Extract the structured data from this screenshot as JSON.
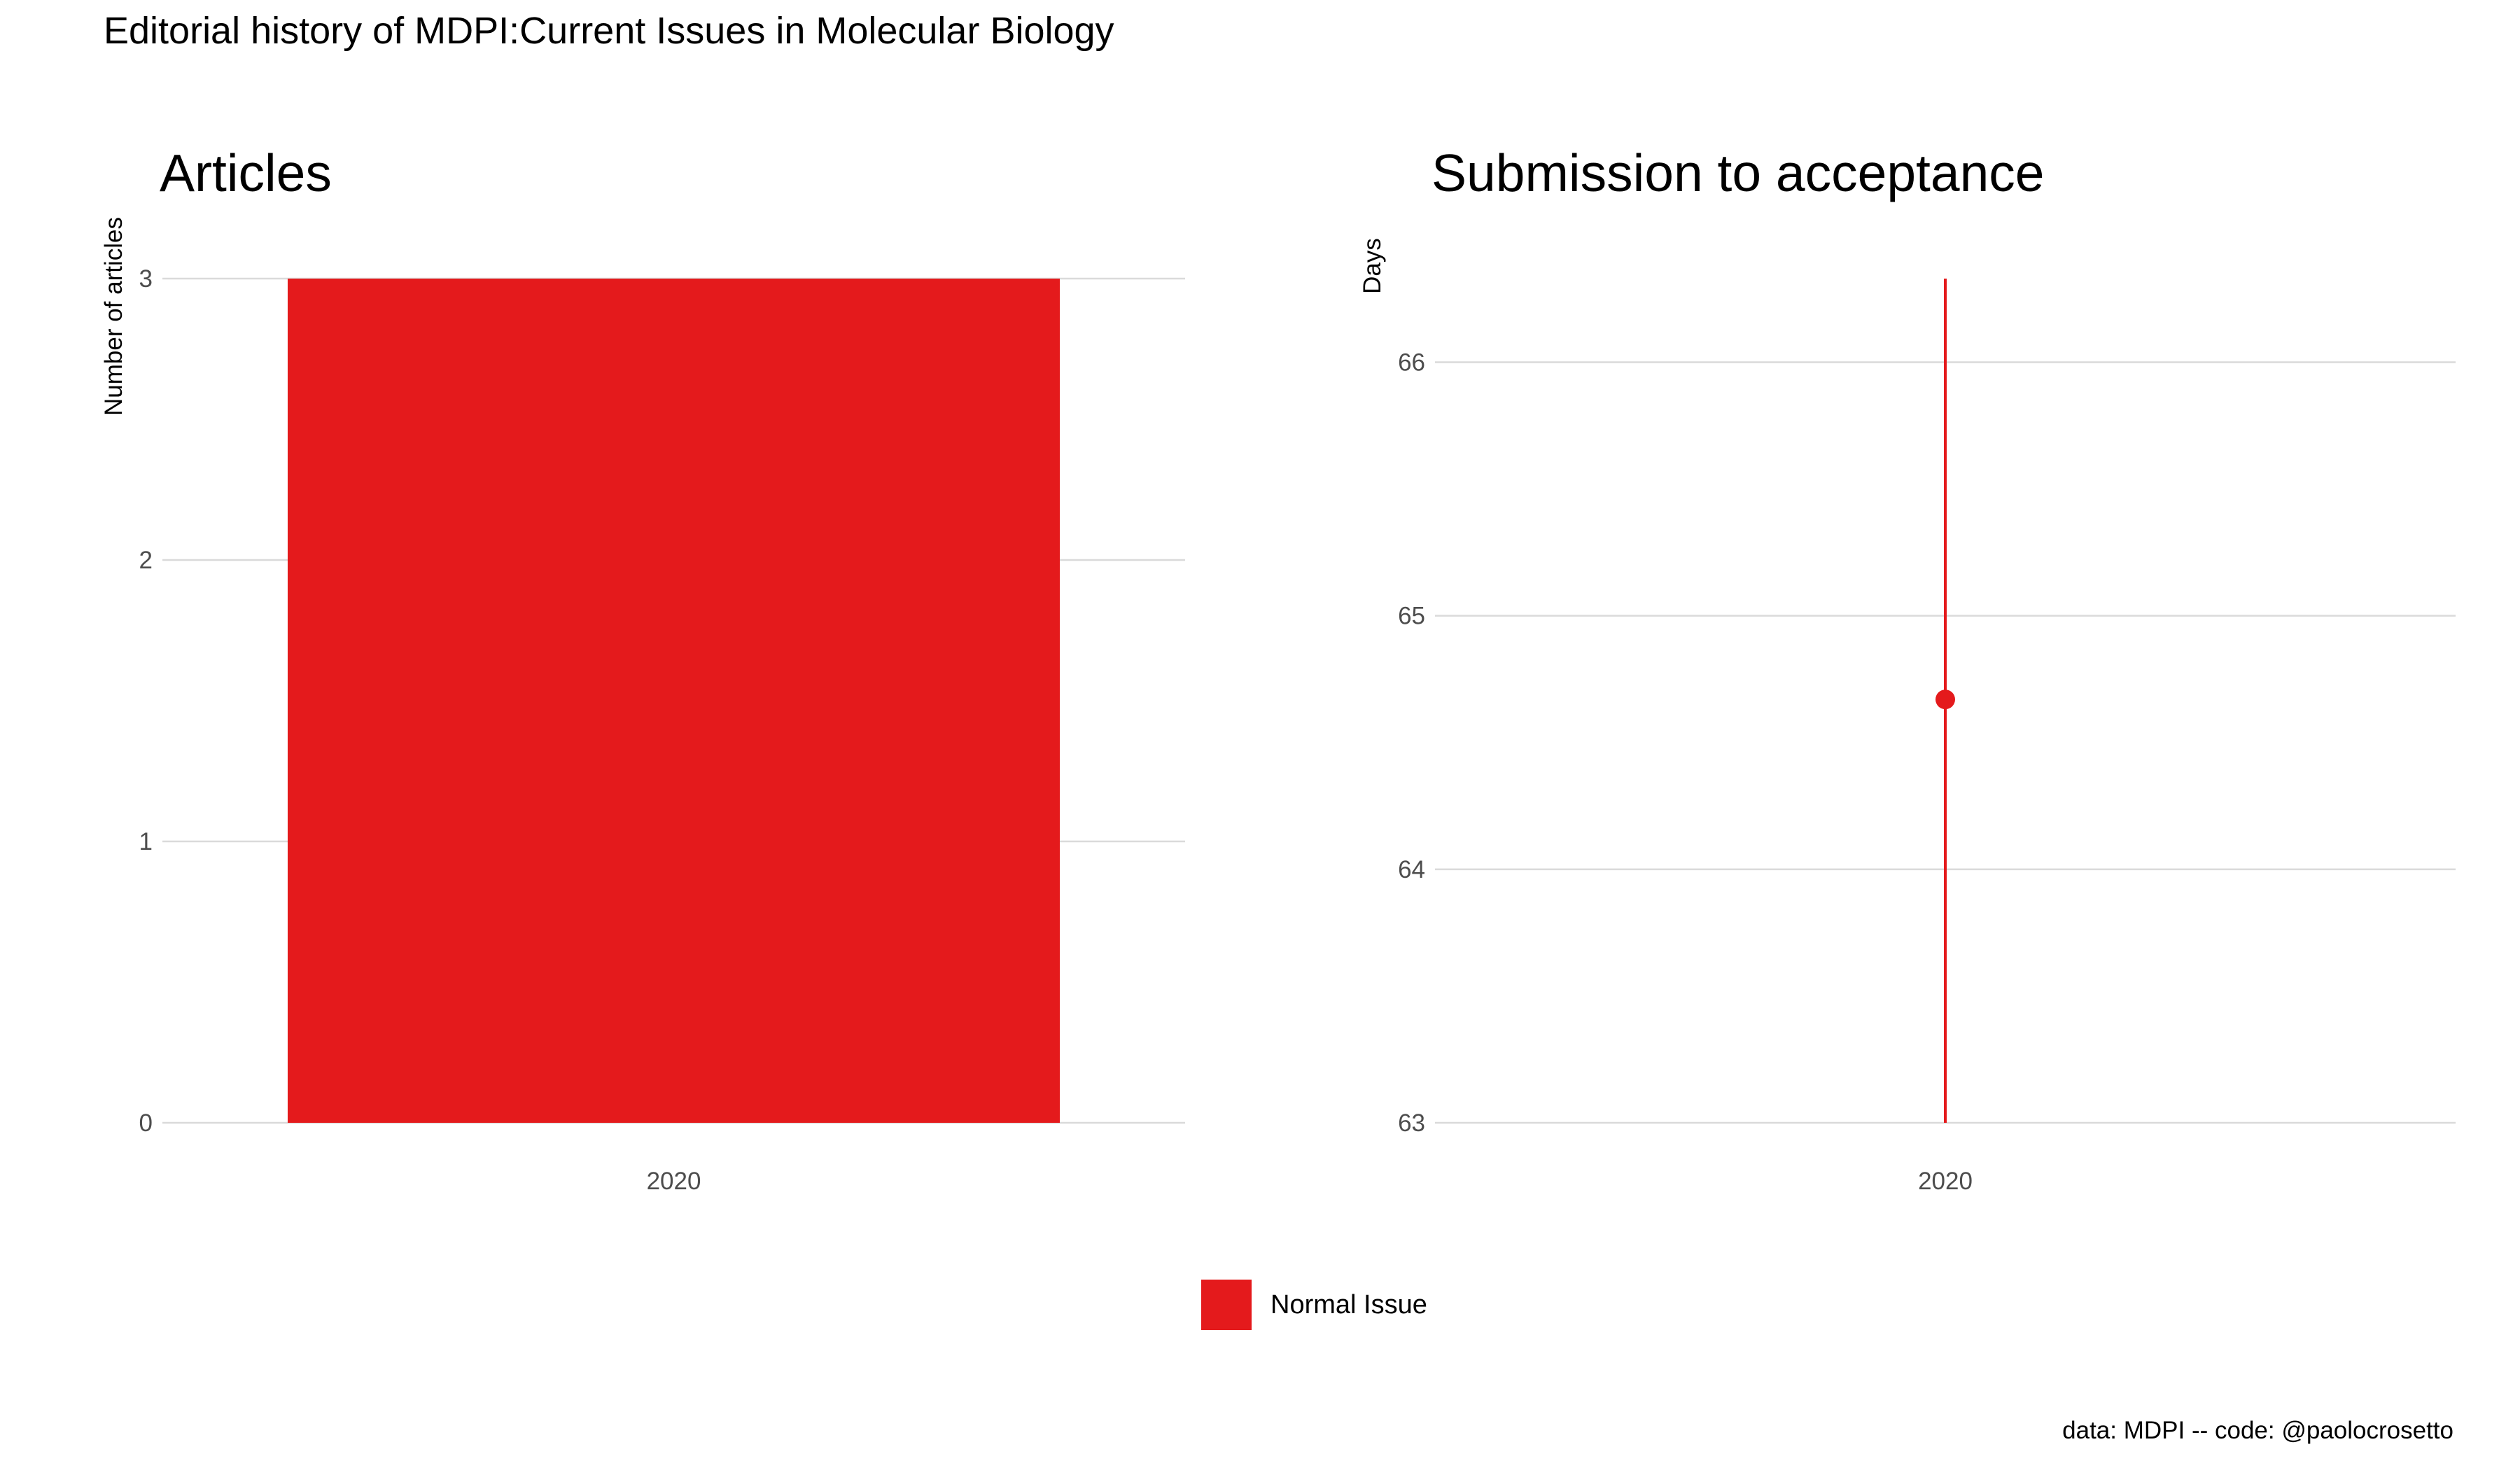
{
  "title": "Editorial history of MDPI:Current Issues in Molecular Biology",
  "caption": "data: MDPI -- code: @paolocrosetto",
  "legend": {
    "position": "bottom",
    "items": [
      {
        "label": "Normal Issue",
        "color": "#e41a1c"
      }
    ]
  },
  "chart_data": [
    {
      "type": "bar",
      "title": "Articles",
      "xlabel": "",
      "ylabel": "Number of articles",
      "categories": [
        "2020"
      ],
      "series": [
        {
          "name": "Normal Issue",
          "values": [
            3
          ],
          "color": "#e41a1c"
        }
      ],
      "ylim": [
        0,
        3
      ],
      "yticks": [
        0,
        1,
        2,
        3
      ],
      "grid": true
    },
    {
      "type": "scatter",
      "title": "Submission to acceptance",
      "xlabel": "",
      "ylabel": "Days",
      "categories": [
        "2020"
      ],
      "series": [
        {
          "name": "Normal Issue",
          "color": "#e41a1c",
          "points": [
            {
              "x": "2020",
              "y": 64.67,
              "ymin": 63.0,
              "ymax": 66.33
            }
          ]
        }
      ],
      "ylim": [
        63,
        66.33
      ],
      "yticks": [
        63,
        64,
        65,
        66
      ],
      "grid": true
    }
  ]
}
